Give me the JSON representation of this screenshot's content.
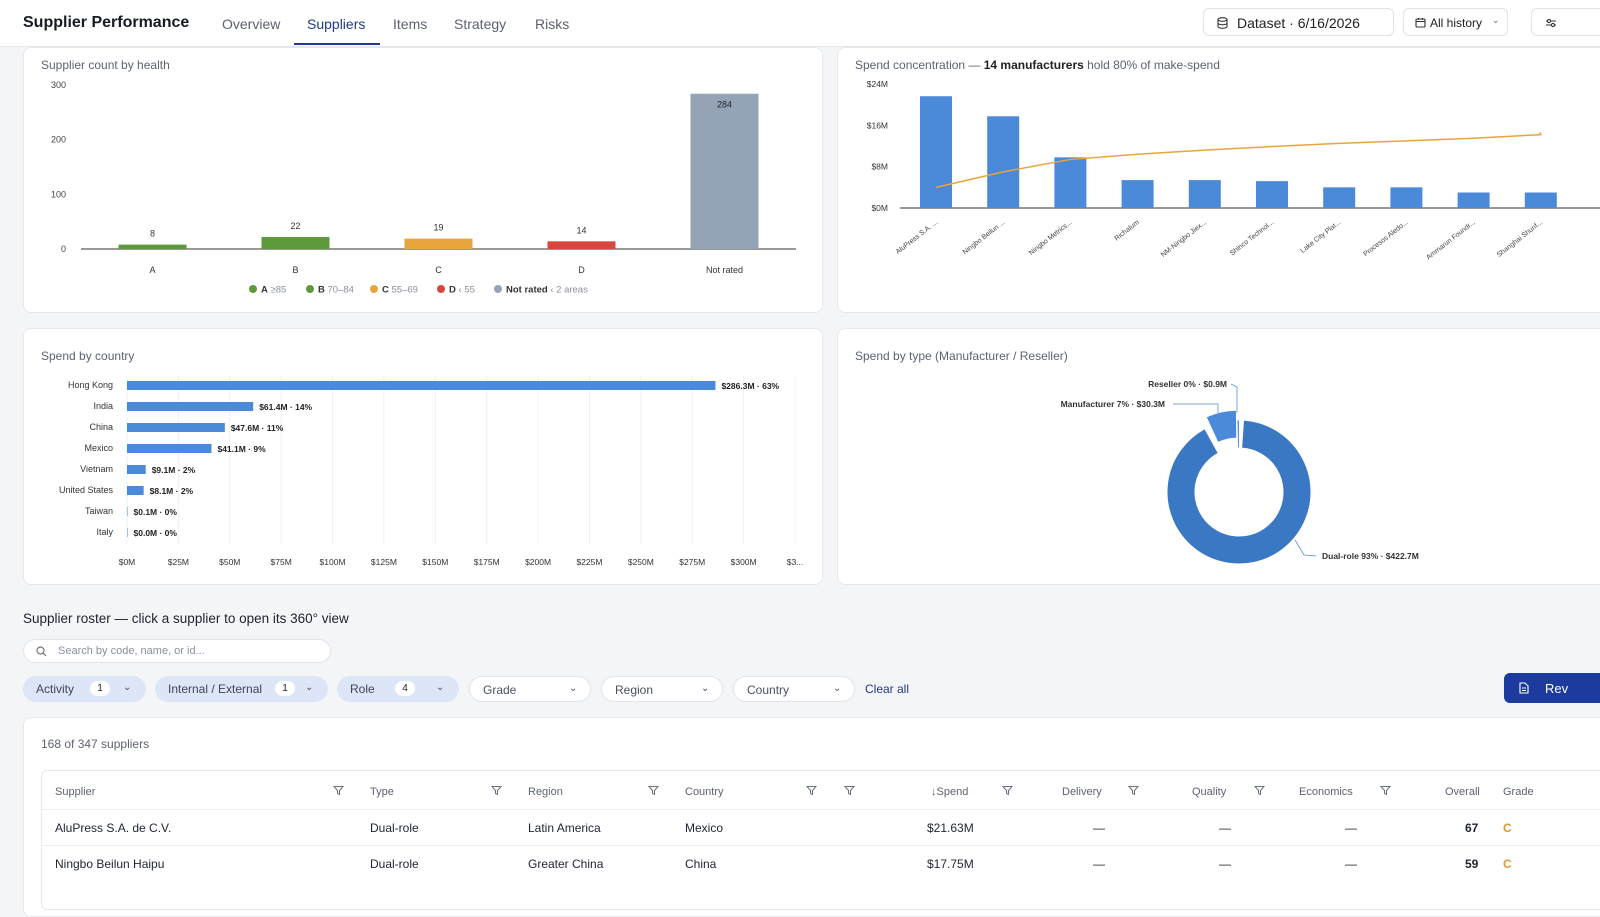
{
  "app": {
    "title": "Supplier Performance",
    "tabs": [
      "Overview",
      "Suppliers",
      "Items",
      "Strategy",
      "Risks"
    ],
    "active_tab": "Suppliers",
    "dataset_label": "Dataset · 6/16/2026",
    "history_label": "All history"
  },
  "cards": {
    "health_title": "Supplier count by health",
    "concentration_title_pre": "Spend concentration — ",
    "concentration_title_bold": "14 manufacturers",
    "concentration_title_post": " hold 80% of make-spend",
    "country_title": "Spend by country",
    "type_title": "Spend by type (Manufacturer / Reseller)"
  },
  "colors": {
    "A": "#5d9a3c",
    "B": "#5d9a3c",
    "C": "#e8a53d",
    "D": "#d9463e",
    "not_rated": "#94a3b5",
    "bar_blue": "#4a8ad9",
    "line_orange": "#e8a53d",
    "donut_blue": "#3a78c4",
    "accent": "#1e3a8a"
  },
  "chart_data": [
    {
      "type": "bar",
      "title": "Supplier count by health",
      "categories": [
        "A",
        "B",
        "C",
        "D",
        "Not rated"
      ],
      "values": [
        8,
        22,
        19,
        14,
        284
      ],
      "ylim": [
        0,
        300
      ],
      "yticks": [
        0,
        100,
        200,
        300
      ],
      "legend": [
        {
          "key": "A",
          "range": "≥85"
        },
        {
          "key": "B",
          "range": "70–84"
        },
        {
          "key": "C",
          "range": "55–69"
        },
        {
          "key": "D",
          "range": "‹ 55"
        },
        {
          "key": "Not rated",
          "range": "‹ 2 areas"
        }
      ],
      "legend_position": "bottom"
    },
    {
      "type": "bar",
      "title": "Spend concentration",
      "categories": [
        "AluPress S.A. ...",
        "Ningbo Beilun ...",
        "Ningbo Metrics...",
        "Richalum",
        "NM-Ningbo Jiex...",
        "Shinco Technol...",
        "Lake City Plat...",
        "Procesos Aledo...",
        "Ammarun Foundr...",
        "Shanghai Shunf..."
      ],
      "values": [
        21.63,
        17.75,
        9.8,
        5.4,
        5.4,
        5.2,
        4.0,
        4.0,
        3.0,
        3.0
      ],
      "cumulative_line": [
        4,
        7,
        9.4,
        10.4,
        11.2,
        11.9,
        12.5,
        13.0,
        13.5,
        14.2
      ],
      "ylim": [
        0,
        24
      ],
      "yticks": [
        "$0M",
        "$8M",
        "$16M",
        "$24M"
      ],
      "ytick_values": [
        0,
        8,
        16,
        24
      ]
    },
    {
      "type": "bar",
      "orientation": "horizontal",
      "title": "Spend by country",
      "categories": [
        "Hong Kong",
        "India",
        "China",
        "Mexico",
        "Vietnam",
        "United States",
        "Taiwan",
        "Italy"
      ],
      "values": [
        286.3,
        61.4,
        47.6,
        41.1,
        9.1,
        8.1,
        0.1,
        0.0
      ],
      "labels": [
        "$286.3M · 63%",
        "$61.4M · 14%",
        "$47.6M · 11%",
        "$41.1M · 9%",
        "$9.1M · 2%",
        "$8.1M · 2%",
        "$0.1M · 0%",
        "$0.0M · 0%"
      ],
      "xlim": [
        0,
        325
      ],
      "xticks": [
        "$0M",
        "$25M",
        "$50M",
        "$75M",
        "$100M",
        "$125M",
        "$150M",
        "$175M",
        "$200M",
        "$225M",
        "$250M",
        "$275M",
        "$300M",
        "$3..."
      ],
      "xtick_values": [
        0,
        25,
        50,
        75,
        100,
        125,
        150,
        175,
        200,
        225,
        250,
        275,
        300,
        325
      ]
    },
    {
      "type": "pie",
      "title": "Spend by type (Manufacturer / Reseller)",
      "categories": [
        "Reseller",
        "Manufacturer",
        "Dual-role"
      ],
      "values": [
        0.9,
        30.3,
        422.7
      ],
      "labels": [
        "Reseller 0% · $0.9M",
        "Manufacturer 7% · $30.3M",
        "Dual-role 93% · $422.7M"
      ]
    }
  ],
  "roster": {
    "title": "Supplier roster — click a supplier to open its 360° view",
    "search_placeholder": "Search by code, name, or id...",
    "filters": [
      {
        "label": "Activity",
        "count": "1"
      },
      {
        "label": "Internal / External",
        "count": "1"
      },
      {
        "label": "Role",
        "count": "4"
      },
      {
        "label": "Grade",
        "count": ""
      },
      {
        "label": "Region",
        "count": ""
      },
      {
        "label": "Country",
        "count": ""
      }
    ],
    "clear_all": "Clear all",
    "review_label": "Rev",
    "count_text": "168 of 347 suppliers",
    "columns": [
      "Supplier",
      "Type",
      "Region",
      "Country",
      "Spend",
      "Delivery",
      "Quality",
      "Economics",
      "Overall",
      "Grade"
    ],
    "sort_arrow": "↓",
    "rows": [
      {
        "supplier": "AluPress S.A. de C.V.",
        "type": "Dual-role",
        "region": "Latin America",
        "country": "Mexico",
        "spend": "$21.63M",
        "delivery": "—",
        "quality": "—",
        "economics": "—",
        "overall": "67",
        "grade": "C"
      },
      {
        "supplier": "Ningbo Beilun Haipu",
        "type": "Dual-role",
        "region": "Greater China",
        "country": "China",
        "spend": "$17.75M",
        "delivery": "—",
        "quality": "—",
        "economics": "—",
        "overall": "59",
        "grade": "C"
      }
    ]
  }
}
